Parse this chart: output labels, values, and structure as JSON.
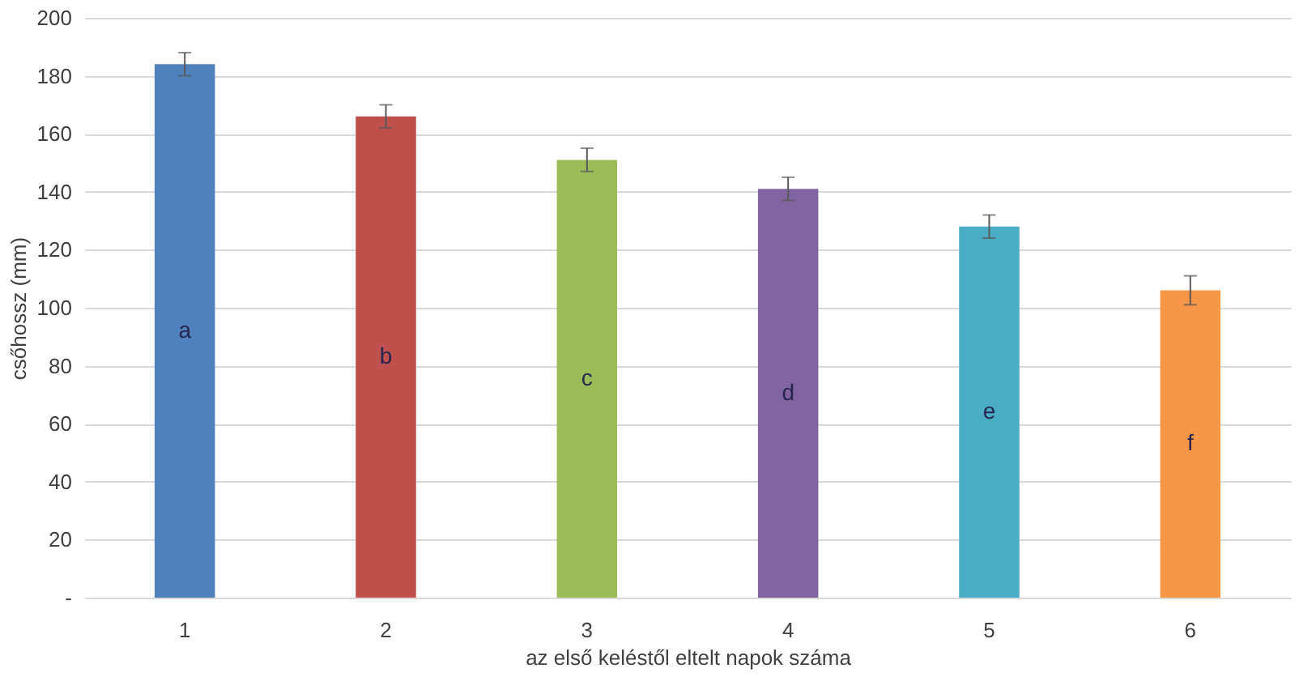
{
  "chart_data": {
    "type": "bar",
    "xlabel": "az első keléstől eltelt napok száma",
    "ylabel": "csőhossz (mm)",
    "categories": [
      "1",
      "2",
      "3",
      "4",
      "5",
      "6"
    ],
    "values": [
      184,
      166,
      151,
      141,
      128,
      106
    ],
    "errors": [
      4,
      4,
      4,
      4,
      4,
      5
    ],
    "colors": [
      "#4f81bd",
      "#c0504d",
      "#9bbb59",
      "#8064a2",
      "#4bacc6",
      "#f79646"
    ],
    "ylim": [
      0,
      200
    ],
    "yticks": [
      {
        "value": 0,
        "label": "-"
      },
      20,
      40,
      60,
      80,
      100,
      120,
      140,
      160,
      180,
      200
    ],
    "grid": "y",
    "annotations": [
      "a",
      "b",
      "c",
      "d",
      "e",
      "f"
    ]
  }
}
